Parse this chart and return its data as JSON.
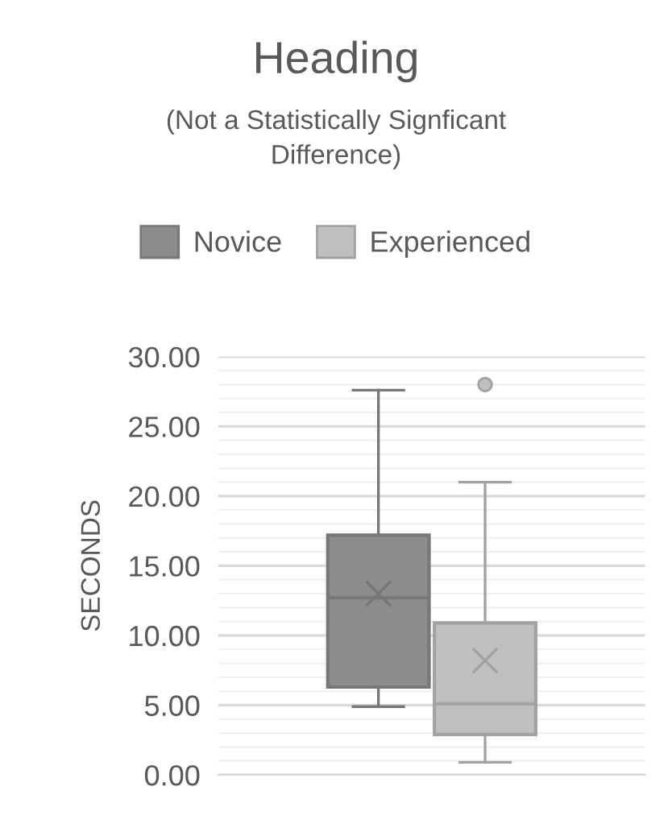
{
  "chart_data": {
    "type": "box",
    "title": "Heading",
    "subtitle": "(Not a Statistically Signficant\nDifference)",
    "ylabel": "SECONDS",
    "categories": [
      null
    ],
    "series": [
      {
        "name": "Novice",
        "color": "#8c8c8c",
        "boxes": [
          {
            "low": 4.9,
            "q1": 6.3,
            "median": 12.7,
            "q3": 17.2,
            "high": 27.6,
            "mean": 13.0
          }
        ]
      },
      {
        "name": "Experienced",
        "color": "#bfbfbf",
        "boxes": [
          {
            "low": 0.9,
            "q1": 2.9,
            "median": 5.1,
            "q3": 10.9,
            "high": 21.0,
            "mean": 8.2,
            "outliers": [
              28.0
            ]
          }
        ]
      }
    ],
    "ylim": [
      0,
      30
    ],
    "yticks": [
      {
        "value": 0,
        "label": "0.00"
      },
      {
        "value": 1,
        "label": null
      },
      {
        "value": 2,
        "label": null
      },
      {
        "value": 3,
        "label": null
      },
      {
        "value": 4,
        "label": null
      },
      {
        "value": 5,
        "label": "5.00"
      },
      {
        "value": 6,
        "label": null
      },
      {
        "value": 7,
        "label": null
      },
      {
        "value": 8,
        "label": null
      },
      {
        "value": 9,
        "label": null
      },
      {
        "value": 10,
        "label": "10.00"
      },
      {
        "value": 11,
        "label": null
      },
      {
        "value": 12,
        "label": null
      },
      {
        "value": 13,
        "label": null
      },
      {
        "value": 14,
        "label": null
      },
      {
        "value": 15,
        "label": "15.00"
      },
      {
        "value": 16,
        "label": null
      },
      {
        "value": 17,
        "label": null
      },
      {
        "value": 18,
        "label": null
      },
      {
        "value": 19,
        "label": null
      },
      {
        "value": 20,
        "label": "20.00"
      },
      {
        "value": 21,
        "label": null
      },
      {
        "value": 22,
        "label": null
      },
      {
        "value": 23,
        "label": null
      },
      {
        "value": 24,
        "label": null
      },
      {
        "value": 25,
        "label": "25.00"
      },
      {
        "value": 26,
        "label": null
      },
      {
        "value": 27,
        "label": null
      },
      {
        "value": 28,
        "label": null
      },
      {
        "value": 29,
        "label": null
      },
      {
        "value": 30,
        "label": "30.00"
      }
    ],
    "grid": "y",
    "legend": "top",
    "marker": "circle"
  }
}
